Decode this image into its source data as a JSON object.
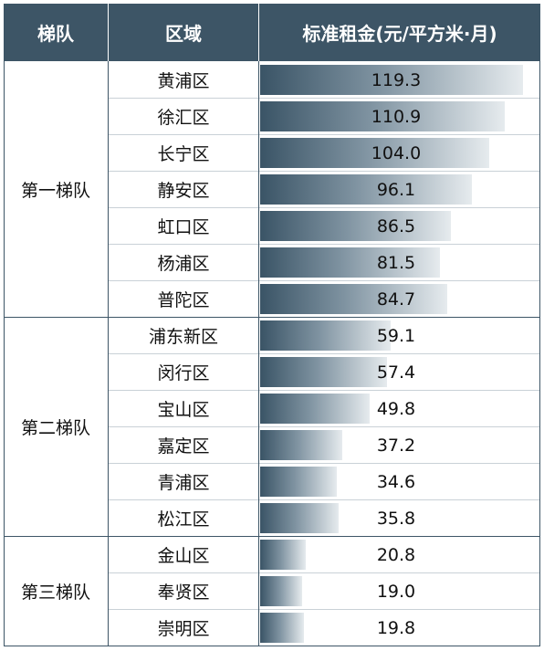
{
  "header": {
    "tier": "梯队",
    "district": "区域",
    "value": "标准租金(元/平方米·月)"
  },
  "colors": {
    "header_bg": "#3d5566",
    "bar_dark": "#3a5466",
    "bar_light": "#e6ebee"
  },
  "chart_data": {
    "type": "bar",
    "orientation": "horizontal",
    "title": "",
    "xlabel": "标准租金(元/平方米·月)",
    "ylabel": "区域",
    "xlim": [
      0,
      125
    ],
    "groups": [
      {
        "name": "第一梯队",
        "categories": [
          "黄浦区",
          "徐汇区",
          "长宁区",
          "静安区",
          "虹口区",
          "杨浦区",
          "普陀区"
        ],
        "values": [
          119.3,
          110.9,
          104.0,
          96.1,
          86.5,
          81.5,
          84.7
        ],
        "labels": [
          "119.3",
          "110.9",
          "104.0",
          "96.1",
          "86.5",
          "81.5",
          "84.7"
        ]
      },
      {
        "name": "第二梯队",
        "categories": [
          "浦东新区",
          "闵行区",
          "宝山区",
          "嘉定区",
          "青浦区",
          "松江区"
        ],
        "values": [
          59.1,
          57.4,
          49.8,
          37.2,
          34.6,
          35.8
        ],
        "labels": [
          "59.1",
          "57.4",
          "49.8",
          "37.2",
          "34.6",
          "35.8"
        ]
      },
      {
        "name": "第三梯队",
        "categories": [
          "金山区",
          "奉贤区",
          "崇明区"
        ],
        "values": [
          20.8,
          19.0,
          19.8
        ],
        "labels": [
          "20.8",
          "19.0",
          "19.8"
        ]
      }
    ]
  }
}
